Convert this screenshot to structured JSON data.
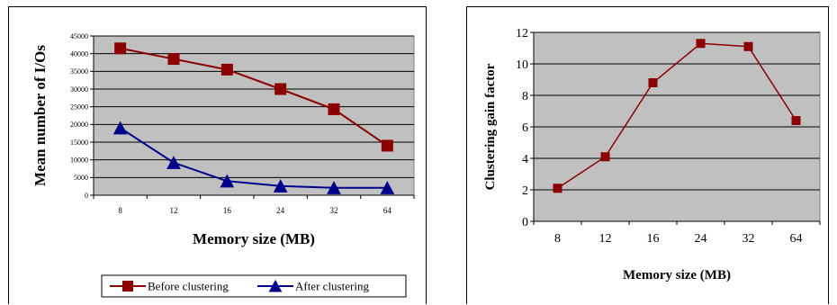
{
  "colors": {
    "plot_bg": "#c0c0c0",
    "grid": "#000000",
    "before": "#8b0000",
    "after": "#00008b"
  },
  "chart_data": [
    {
      "type": "line",
      "title": "",
      "xlabel": "Memory size (MB)",
      "ylabel": "Mean number of I/Os",
      "categories": [
        "8",
        "12",
        "16",
        "24",
        "32",
        "64"
      ],
      "ylim": [
        0,
        45000
      ],
      "yticks": [
        0,
        5000,
        10000,
        15000,
        20000,
        25000,
        30000,
        35000,
        40000,
        45000
      ],
      "ytick_labels": [
        "0",
        "5000",
        "10000",
        "15000",
        "20000",
        "25000",
        "30000",
        "35000",
        "40000",
        "45000"
      ],
      "grid": true,
      "legend_position": "bottom",
      "series": [
        {
          "name": "Before clustering",
          "marker": "square",
          "color": "#8b0000",
          "values": [
            41500,
            38500,
            35500,
            30000,
            24300,
            14000
          ]
        },
        {
          "name": "After clustering",
          "marker": "triangle",
          "color": "#00008b",
          "values": [
            19000,
            9200,
            4000,
            2600,
            2100,
            2100
          ]
        }
      ]
    },
    {
      "type": "line",
      "title": "",
      "xlabel": "Memory size (MB)",
      "ylabel": "Clustering gain factor",
      "categories": [
        "8",
        "12",
        "16",
        "24",
        "32",
        "64"
      ],
      "ylim": [
        0,
        12
      ],
      "yticks": [
        0,
        2,
        4,
        6,
        8,
        10,
        12
      ],
      "ytick_labels": [
        "0",
        "2",
        "4",
        "6",
        "8",
        "10",
        "12"
      ],
      "grid": true,
      "legend_position": "none",
      "series": [
        {
          "marker": "square",
          "color": "#8b0000",
          "values": [
            2.1,
            4.1,
            8.8,
            11.3,
            11.1,
            6.4
          ]
        }
      ]
    }
  ]
}
